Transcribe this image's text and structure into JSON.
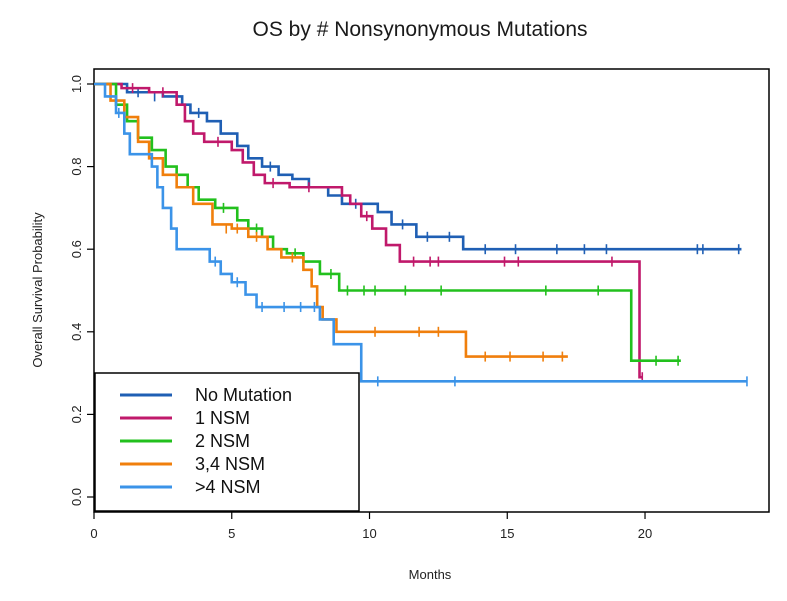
{
  "chart_data": {
    "type": "line",
    "title": "OS by # Nonsynonymous Mutations",
    "xlabel": "Months",
    "ylabel": "Overall Survival Probability",
    "xlim": [
      0,
      24.5
    ],
    "ylim": [
      0,
      1.03
    ],
    "xticks": [
      0,
      5,
      10,
      15,
      20
    ],
    "xtick_labels": [
      "0",
      "5",
      "10",
      "15",
      "20"
    ],
    "yticks": [
      0.0,
      0.2,
      0.4,
      0.6,
      0.8,
      1.0
    ],
    "ytick_labels": [
      "0.0",
      "0.2",
      "0.4",
      "0.6",
      "0.8",
      "1.0"
    ],
    "legend_position": "bottom-left",
    "series": [
      {
        "name": "No Mutation",
        "color": "#1f5fb4",
        "steps": [
          [
            0,
            1.0
          ],
          [
            1.2,
            0.98
          ],
          [
            2.5,
            0.97
          ],
          [
            3.2,
            0.95
          ],
          [
            3.5,
            0.93
          ],
          [
            4.1,
            0.91
          ],
          [
            4.6,
            0.88
          ],
          [
            5.2,
            0.85
          ],
          [
            5.6,
            0.82
          ],
          [
            6.1,
            0.8
          ],
          [
            6.7,
            0.78
          ],
          [
            7.2,
            0.77
          ],
          [
            7.8,
            0.75
          ],
          [
            8.5,
            0.73
          ],
          [
            9.0,
            0.71
          ],
          [
            10.3,
            0.69
          ],
          [
            10.8,
            0.66
          ],
          [
            11.7,
            0.63
          ],
          [
            13.4,
            0.6
          ],
          [
            23.5,
            0.6
          ]
        ],
        "censors": [
          [
            1.6,
            0.98
          ],
          [
            2.2,
            0.97
          ],
          [
            3.8,
            0.93
          ],
          [
            5.0,
            0.85
          ],
          [
            6.4,
            0.8
          ],
          [
            9.5,
            0.71
          ],
          [
            11.2,
            0.66
          ],
          [
            12.1,
            0.63
          ],
          [
            12.9,
            0.63
          ],
          [
            14.2,
            0.6
          ],
          [
            15.3,
            0.6
          ],
          [
            16.8,
            0.6
          ],
          [
            17.8,
            0.6
          ],
          [
            18.6,
            0.6
          ],
          [
            21.9,
            0.6
          ],
          [
            22.1,
            0.6
          ],
          [
            23.4,
            0.6
          ]
        ]
      },
      {
        "name": "1 NSM",
        "color": "#c0196b",
        "steps": [
          [
            0,
            1.0
          ],
          [
            1.0,
            0.99
          ],
          [
            2.0,
            0.98
          ],
          [
            3.0,
            0.95
          ],
          [
            3.3,
            0.91
          ],
          [
            3.6,
            0.88
          ],
          [
            4.0,
            0.86
          ],
          [
            5.0,
            0.84
          ],
          [
            5.4,
            0.81
          ],
          [
            5.8,
            0.78
          ],
          [
            6.2,
            0.76
          ],
          [
            7.1,
            0.75
          ],
          [
            9.0,
            0.73
          ],
          [
            9.3,
            0.71
          ],
          [
            9.7,
            0.68
          ],
          [
            10.1,
            0.65
          ],
          [
            10.6,
            0.61
          ],
          [
            11.1,
            0.57
          ],
          [
            19.8,
            0.57
          ],
          [
            19.8,
            0.29
          ],
          [
            19.9,
            0.29
          ]
        ],
        "censors": [
          [
            1.4,
            0.99
          ],
          [
            2.5,
            0.98
          ],
          [
            4.5,
            0.86
          ],
          [
            6.5,
            0.76
          ],
          [
            7.8,
            0.75
          ],
          [
            9.9,
            0.68
          ],
          [
            11.6,
            0.57
          ],
          [
            12.2,
            0.57
          ],
          [
            12.5,
            0.57
          ],
          [
            14.9,
            0.57
          ],
          [
            15.4,
            0.57
          ],
          [
            18.8,
            0.57
          ],
          [
            19.9,
            0.29
          ]
        ]
      },
      {
        "name": "2 NSM",
        "color": "#22c01d",
        "steps": [
          [
            0,
            1.0
          ],
          [
            0.8,
            0.95
          ],
          [
            1.2,
            0.91
          ],
          [
            1.6,
            0.87
          ],
          [
            2.1,
            0.84
          ],
          [
            2.6,
            0.8
          ],
          [
            3.0,
            0.78
          ],
          [
            3.4,
            0.75
          ],
          [
            3.8,
            0.72
          ],
          [
            4.4,
            0.7
          ],
          [
            5.2,
            0.67
          ],
          [
            5.6,
            0.65
          ],
          [
            6.1,
            0.63
          ],
          [
            6.5,
            0.6
          ],
          [
            7.0,
            0.59
          ],
          [
            7.6,
            0.57
          ],
          [
            8.2,
            0.54
          ],
          [
            8.9,
            0.5
          ],
          [
            19.5,
            0.5
          ],
          [
            19.5,
            0.33
          ],
          [
            21.3,
            0.33
          ]
        ],
        "censors": [
          [
            1.1,
            0.95
          ],
          [
            4.7,
            0.7
          ],
          [
            5.9,
            0.65
          ],
          [
            7.3,
            0.59
          ],
          [
            8.6,
            0.54
          ],
          [
            9.2,
            0.5
          ],
          [
            9.8,
            0.5
          ],
          [
            10.2,
            0.5
          ],
          [
            11.3,
            0.5
          ],
          [
            12.6,
            0.5
          ],
          [
            16.4,
            0.5
          ],
          [
            18.3,
            0.5
          ],
          [
            20.4,
            0.33
          ],
          [
            21.2,
            0.33
          ]
        ]
      },
      {
        "name": "3,4 NSM",
        "color": "#f07f0c",
        "steps": [
          [
            0,
            1.0
          ],
          [
            0.6,
            0.96
          ],
          [
            1.1,
            0.92
          ],
          [
            1.6,
            0.86
          ],
          [
            2.0,
            0.82
          ],
          [
            2.5,
            0.78
          ],
          [
            3.0,
            0.75
          ],
          [
            3.6,
            0.71
          ],
          [
            4.3,
            0.66
          ],
          [
            5.0,
            0.65
          ],
          [
            5.6,
            0.63
          ],
          [
            6.3,
            0.6
          ],
          [
            6.8,
            0.58
          ],
          [
            7.6,
            0.55
          ],
          [
            7.9,
            0.51
          ],
          [
            8.1,
            0.46
          ],
          [
            8.3,
            0.43
          ],
          [
            8.8,
            0.4
          ],
          [
            13.5,
            0.4
          ],
          [
            13.5,
            0.34
          ],
          [
            17.2,
            0.34
          ]
        ],
        "censors": [
          [
            4.8,
            0.65
          ],
          [
            5.2,
            0.65
          ],
          [
            5.9,
            0.63
          ],
          [
            7.2,
            0.58
          ],
          [
            10.2,
            0.4
          ],
          [
            11.8,
            0.4
          ],
          [
            12.5,
            0.4
          ],
          [
            14.2,
            0.34
          ],
          [
            15.1,
            0.34
          ],
          [
            16.3,
            0.34
          ],
          [
            17.0,
            0.34
          ]
        ]
      },
      {
        "name": ">4 NSM",
        "color": "#3b93e8",
        "steps": [
          [
            0,
            1.0
          ],
          [
            0.4,
            0.97
          ],
          [
            0.8,
            0.93
          ],
          [
            1.1,
            0.88
          ],
          [
            1.3,
            0.83
          ],
          [
            2.1,
            0.8
          ],
          [
            2.3,
            0.75
          ],
          [
            2.5,
            0.7
          ],
          [
            2.8,
            0.65
          ],
          [
            3.0,
            0.6
          ],
          [
            4.2,
            0.57
          ],
          [
            4.6,
            0.54
          ],
          [
            5.0,
            0.52
          ],
          [
            5.5,
            0.49
          ],
          [
            5.9,
            0.46
          ],
          [
            6.3,
            0.46
          ],
          [
            8.2,
            0.43
          ],
          [
            8.7,
            0.37
          ],
          [
            9.7,
            0.37
          ],
          [
            9.7,
            0.28
          ],
          [
            23.7,
            0.28
          ]
        ],
        "censors": [
          [
            0.9,
            0.93
          ],
          [
            4.4,
            0.57
          ],
          [
            5.2,
            0.52
          ],
          [
            6.1,
            0.46
          ],
          [
            6.9,
            0.46
          ],
          [
            7.5,
            0.46
          ],
          [
            8.0,
            0.46
          ],
          [
            10.3,
            0.28
          ],
          [
            13.1,
            0.28
          ],
          [
            23.7,
            0.28
          ]
        ]
      }
    ]
  }
}
